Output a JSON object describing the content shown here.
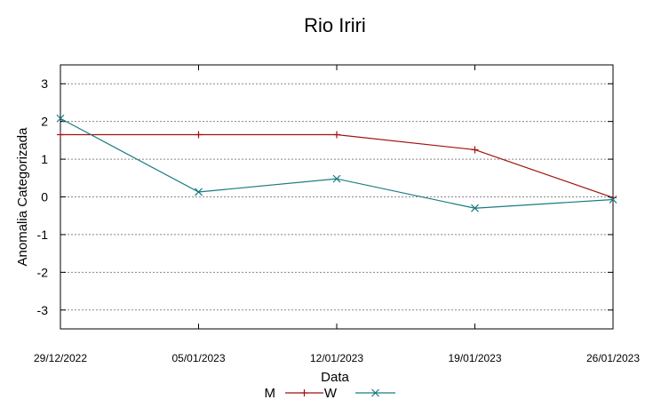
{
  "chart_data": {
    "type": "line",
    "title": "Rio Iriri",
    "xlabel": "Data",
    "ylabel": "Anomalia Categorizada",
    "categories": [
      "29/12/2022",
      "05/01/2023",
      "12/01/2023",
      "19/01/2023",
      "26/01/2023"
    ],
    "ylim": [
      -3.5,
      3.5
    ],
    "yticks": [
      3,
      2,
      1,
      0,
      -1,
      -2,
      -3
    ],
    "ytick_labels": [
      "3",
      "2",
      "1",
      "0",
      "-1",
      "-2",
      "-3"
    ],
    "grid": true,
    "legend_position": "bottom-center",
    "series": [
      {
        "name": "M",
        "color": "#a01010",
        "marker": "plus",
        "values": [
          1.65,
          1.65,
          1.65,
          1.25,
          -0.02
        ]
      },
      {
        "name": "W",
        "color": "#1a7a80",
        "marker": "x",
        "values": [
          2.08,
          0.13,
          0.48,
          -0.3,
          -0.07
        ]
      }
    ]
  }
}
